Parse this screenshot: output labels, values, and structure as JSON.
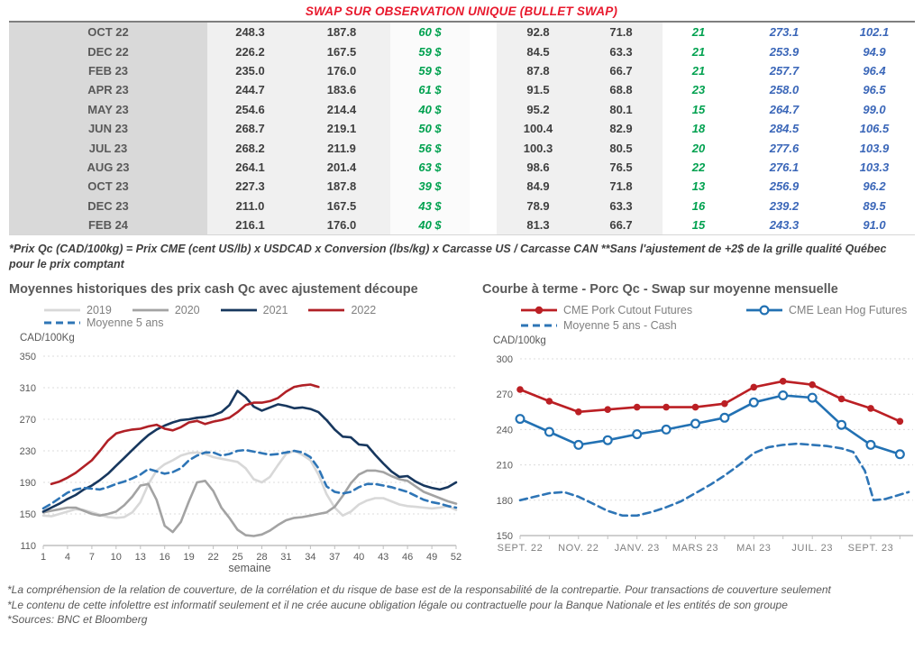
{
  "page_title": "SWAP SUR OBSERVATION UNIQUE (BULLET SWAP)",
  "table": {
    "rows": [
      [
        "OCT 22",
        "248.3",
        "187.8",
        "60 $",
        "92.8",
        "71.8",
        "21",
        "273.1",
        "102.1"
      ],
      [
        "DEC 22",
        "226.2",
        "167.5",
        "59 $",
        "84.5",
        "63.3",
        "21",
        "253.9",
        "94.9"
      ],
      [
        "FEB 23",
        "235.0",
        "176.0",
        "59 $",
        "87.8",
        "66.7",
        "21",
        "257.7",
        "96.4"
      ],
      [
        "APR 23",
        "244.7",
        "183.6",
        "61 $",
        "91.5",
        "68.8",
        "23",
        "258.0",
        "96.5"
      ],
      [
        "MAY 23",
        "254.6",
        "214.4",
        "40 $",
        "95.2",
        "80.1",
        "15",
        "264.7",
        "99.0"
      ],
      [
        "JUN 23",
        "268.7",
        "219.1",
        "50 $",
        "100.4",
        "82.9",
        "18",
        "284.5",
        "106.5"
      ],
      [
        "JUL 23",
        "268.2",
        "211.9",
        "56 $",
        "100.3",
        "80.5",
        "20",
        "277.6",
        "103.9"
      ],
      [
        "AUG 23",
        "264.1",
        "201.4",
        "63 $",
        "98.6",
        "76.5",
        "22",
        "276.1",
        "103.3"
      ],
      [
        "OCT 23",
        "227.3",
        "187.8",
        "39 $",
        "84.9",
        "71.8",
        "13",
        "256.9",
        "96.2"
      ],
      [
        "DEC 23",
        "211.0",
        "167.5",
        "43 $",
        "78.9",
        "63.3",
        "16",
        "239.2",
        "89.5"
      ],
      [
        "FEB 24",
        "216.1",
        "176.0",
        "40 $",
        "81.3",
        "66.7",
        "15",
        "243.3",
        "91.0"
      ]
    ]
  },
  "footnote": "*Prix Qc (CAD/100kg) = Prix CME (cent US/lb) x USDCAD x Conversion (lbs/kg) x Carcasse US / Carcasse CAN **Sans l'ajustement de +2$ de la grille qualité Québec pour le prix comptant",
  "chart_data": [
    {
      "type": "line",
      "title": "Moyennes historiques des prix cash Qc avec ajustement découpe",
      "unit_label": "CAD/100Kg",
      "xlabel": "semaine",
      "ylim": [
        110,
        350
      ],
      "y_ticks": [
        110,
        150,
        190,
        230,
        270,
        310,
        350
      ],
      "x_ticks": [
        1,
        4,
        7,
        10,
        13,
        16,
        19,
        22,
        25,
        28,
        31,
        34,
        37,
        40,
        43,
        46,
        49,
        52
      ],
      "grid": "dashed-horizontal",
      "legend_position": "top",
      "series": [
        {
          "name": "2019",
          "color": "#d8d8d8",
          "style": "solid",
          "x_start": 1,
          "values": [
            148,
            147,
            150,
            153,
            156,
            155,
            152,
            149,
            146,
            145,
            146,
            152,
            165,
            188,
            205,
            213,
            218,
            224,
            227,
            228,
            226,
            222,
            220,
            218,
            216,
            208,
            194,
            190,
            197,
            212,
            226,
            230,
            225,
            218,
            200,
            175,
            158,
            148,
            153,
            162,
            167,
            170,
            170,
            166,
            162,
            160,
            159,
            158,
            157,
            158,
            160,
            155
          ]
        },
        {
          "name": "2020",
          "color": "#a3a3a3",
          "style": "solid",
          "x_start": 1,
          "values": [
            152,
            154,
            156,
            158,
            158,
            154,
            150,
            148,
            150,
            153,
            161,
            172,
            186,
            188,
            168,
            135,
            127,
            140,
            166,
            190,
            192,
            179,
            158,
            145,
            130,
            123,
            122,
            124,
            129,
            136,
            142,
            145,
            146,
            148,
            150,
            152,
            159,
            173,
            189,
            200,
            205,
            205,
            203,
            198,
            194,
            192,
            185,
            178,
            174,
            170,
            166,
            163
          ]
        },
        {
          "name": "2021",
          "color": "#17375e",
          "style": "solid",
          "x_start": 1,
          "values": [
            153,
            158,
            163,
            169,
            174,
            181,
            186,
            193,
            201,
            211,
            221,
            231,
            241,
            250,
            257,
            262,
            266,
            269,
            270,
            272,
            273,
            275,
            279,
            288,
            306,
            298,
            286,
            281,
            285,
            289,
            287,
            284,
            285,
            283,
            279,
            269,
            257,
            248,
            247,
            238,
            237,
            225,
            214,
            204,
            197,
            198,
            191,
            186,
            183,
            181,
            184,
            190
          ]
        },
        {
          "name": "2022",
          "color": "#b02026",
          "style": "solid",
          "x_start": 2,
          "values": [
            188,
            191,
            196,
            202,
            210,
            218,
            230,
            243,
            252,
            255,
            257,
            258,
            261,
            263,
            258,
            256,
            260,
            266,
            268,
            264,
            267,
            269,
            272,
            279,
            288,
            291,
            291,
            293,
            297,
            305,
            311,
            313,
            314,
            311
          ]
        },
        {
          "name": "Moyenne 5 ans",
          "color": "#2e75b6",
          "style": "dashed",
          "x_start": 1,
          "values": [
            157,
            163,
            170,
            177,
            181,
            183,
            182,
            181,
            184,
            188,
            191,
            195,
            200,
            207,
            204,
            201,
            203,
            208,
            218,
            224,
            228,
            228,
            224,
            226,
            230,
            231,
            229,
            227,
            225,
            226,
            228,
            230,
            228,
            222,
            208,
            185,
            178,
            176,
            178,
            184,
            188,
            188,
            186,
            184,
            181,
            178,
            173,
            168,
            165,
            163,
            160,
            158
          ]
        }
      ]
    },
    {
      "type": "line",
      "title": "Courbe à terme - Porc Qc - Swap sur moyenne mensuelle",
      "unit_label": "CAD/100kg",
      "ylim": [
        150,
        300
      ],
      "y_ticks": [
        150,
        180,
        210,
        240,
        270,
        300
      ],
      "x_tick_labels": [
        "SEPT. 22",
        "NOV. 22",
        "JANV. 23",
        "MARS 23",
        "MAI 23",
        "JUIL. 23",
        "SEPT. 23"
      ],
      "months_span": 14,
      "grid": "dashed-horizontal",
      "legend_position": "top",
      "series": [
        {
          "name": "CME Pork Cutout Futures",
          "color": "#bb1f24",
          "style": "solid",
          "marker": "filled",
          "x": [
            0,
            1,
            2,
            3,
            4,
            5,
            6,
            7,
            8,
            9,
            10,
            11,
            12,
            13
          ],
          "values": [
            274,
            264,
            255,
            257,
            259,
            259,
            259,
            262,
            276,
            281,
            278,
            266,
            258,
            247
          ]
        },
        {
          "name": "CME Lean Hog Futures",
          "color": "#2271b3",
          "style": "solid",
          "marker": "open",
          "x": [
            0,
            1,
            2,
            3,
            4,
            5,
            6,
            7,
            8,
            9,
            10,
            11,
            12,
            13
          ],
          "values": [
            249,
            238,
            227,
            231,
            236,
            240,
            245,
            250,
            263,
            269,
            267,
            244,
            227,
            219
          ]
        },
        {
          "name": "Moyenne 5 ans - Cash",
          "color": "#2e75b6",
          "style": "dashed",
          "x": [
            0,
            0.5,
            1,
            1.5,
            2,
            2.5,
            3,
            3.5,
            4,
            4.5,
            5,
            5.5,
            6,
            6.5,
            7,
            7.5,
            8,
            8.5,
            9,
            9.5,
            10,
            10.5,
            11,
            11.4,
            11.8,
            12.1,
            12.5,
            12.9,
            13.3
          ],
          "values": [
            180,
            183,
            186,
            187,
            183,
            177,
            171,
            167,
            167,
            170,
            174,
            179,
            186,
            193,
            201,
            210,
            220,
            225,
            227,
            228,
            227,
            226,
            224,
            221,
            205,
            180,
            181,
            184,
            187
          ]
        }
      ]
    }
  ],
  "footer": {
    "lines": [
      "*La compréhension de la relation de couverture, de la corrélation et du risque de base est de la responsabilité de la contrepartie. Pour transactions de couverture seulement",
      "*Le contenu de cette infolettre est informatif seulement et il ne crée aucune obligation légale ou contractuelle pour la Banque Nationale et les entités de son groupe",
      "*Sources: BNC et Bloomberg"
    ]
  },
  "colors": {
    "title_red": "#e8192d",
    "green_accent": "#00a14f",
    "blue_accent": "#3a66b8",
    "month_col_bg": "#d9d9d9",
    "num_col_bg": "#f0f0f0",
    "text_gray": "#595959"
  }
}
